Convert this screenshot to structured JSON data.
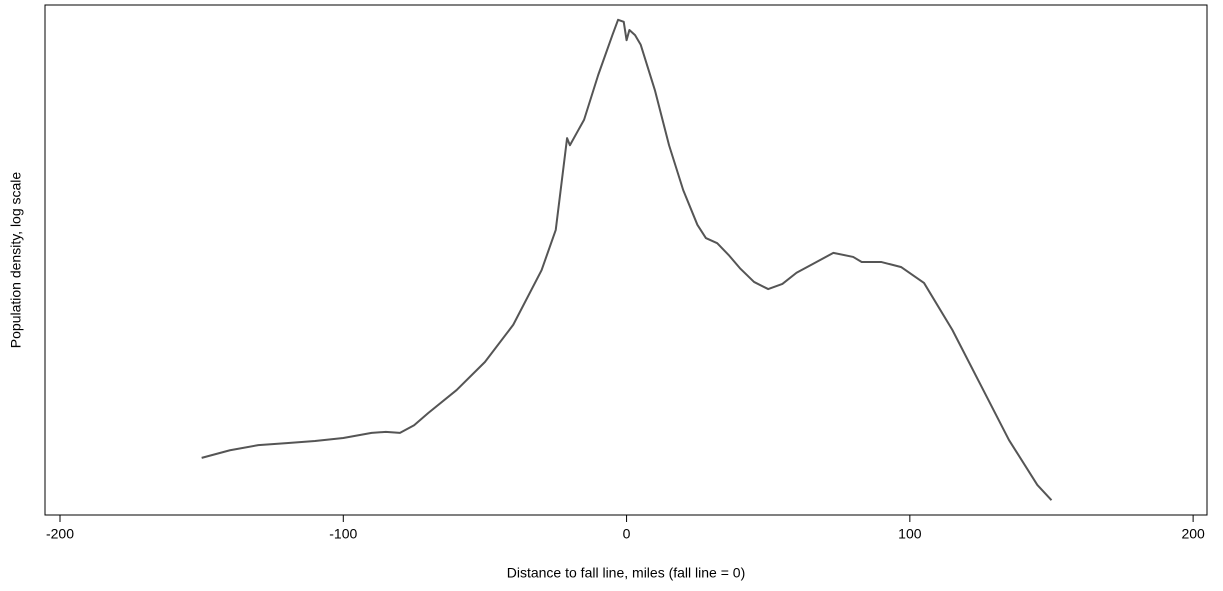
{
  "chart_data": {
    "type": "line",
    "xlabel": "Distance to fall line, miles (fall line = 0)",
    "ylabel": "Population density, log scale",
    "x": [
      -150,
      -140,
      -130,
      -120,
      -110,
      -100,
      -90,
      -85,
      -80,
      -75,
      -70,
      -60,
      -50,
      -40,
      -30,
      -25,
      -21,
      -20,
      -17,
      -15,
      -10,
      -5,
      -3,
      -1,
      0,
      1,
      3,
      5,
      10,
      15,
      20,
      25,
      28,
      32,
      36,
      40,
      45,
      50,
      55,
      60,
      65,
      73,
      80,
      83,
      90,
      97,
      105,
      115,
      125,
      135,
      145,
      150
    ],
    "series": [
      {
        "color": "#555555",
        "values": [
          11.2,
          12.7,
          13.7,
          14.1,
          14.5,
          15.1,
          16.1,
          16.3,
          16.1,
          17.6,
          20.0,
          24.5,
          30.0,
          37.3,
          48.0,
          55.9,
          73.9,
          72.5,
          75.5,
          77.5,
          86.3,
          94.1,
          97.1,
          96.7,
          93.1,
          95.1,
          94.1,
          92.2,
          83.3,
          72.5,
          63.7,
          56.9,
          54.3,
          53.3,
          51.0,
          48.4,
          45.7,
          44.3,
          45.3,
          47.5,
          49.0,
          51.4,
          50.6,
          49.6,
          49.6,
          48.6,
          45.5,
          36.3,
          25.5,
          14.7,
          5.9,
          2.9
        ]
      }
    ],
    "xlim": [
      -205.3,
      204.9
    ],
    "xticks": [
      -200,
      -100,
      0,
      100,
      200
    ],
    "ylim": [
      0,
      100
    ],
    "grid": false
  }
}
